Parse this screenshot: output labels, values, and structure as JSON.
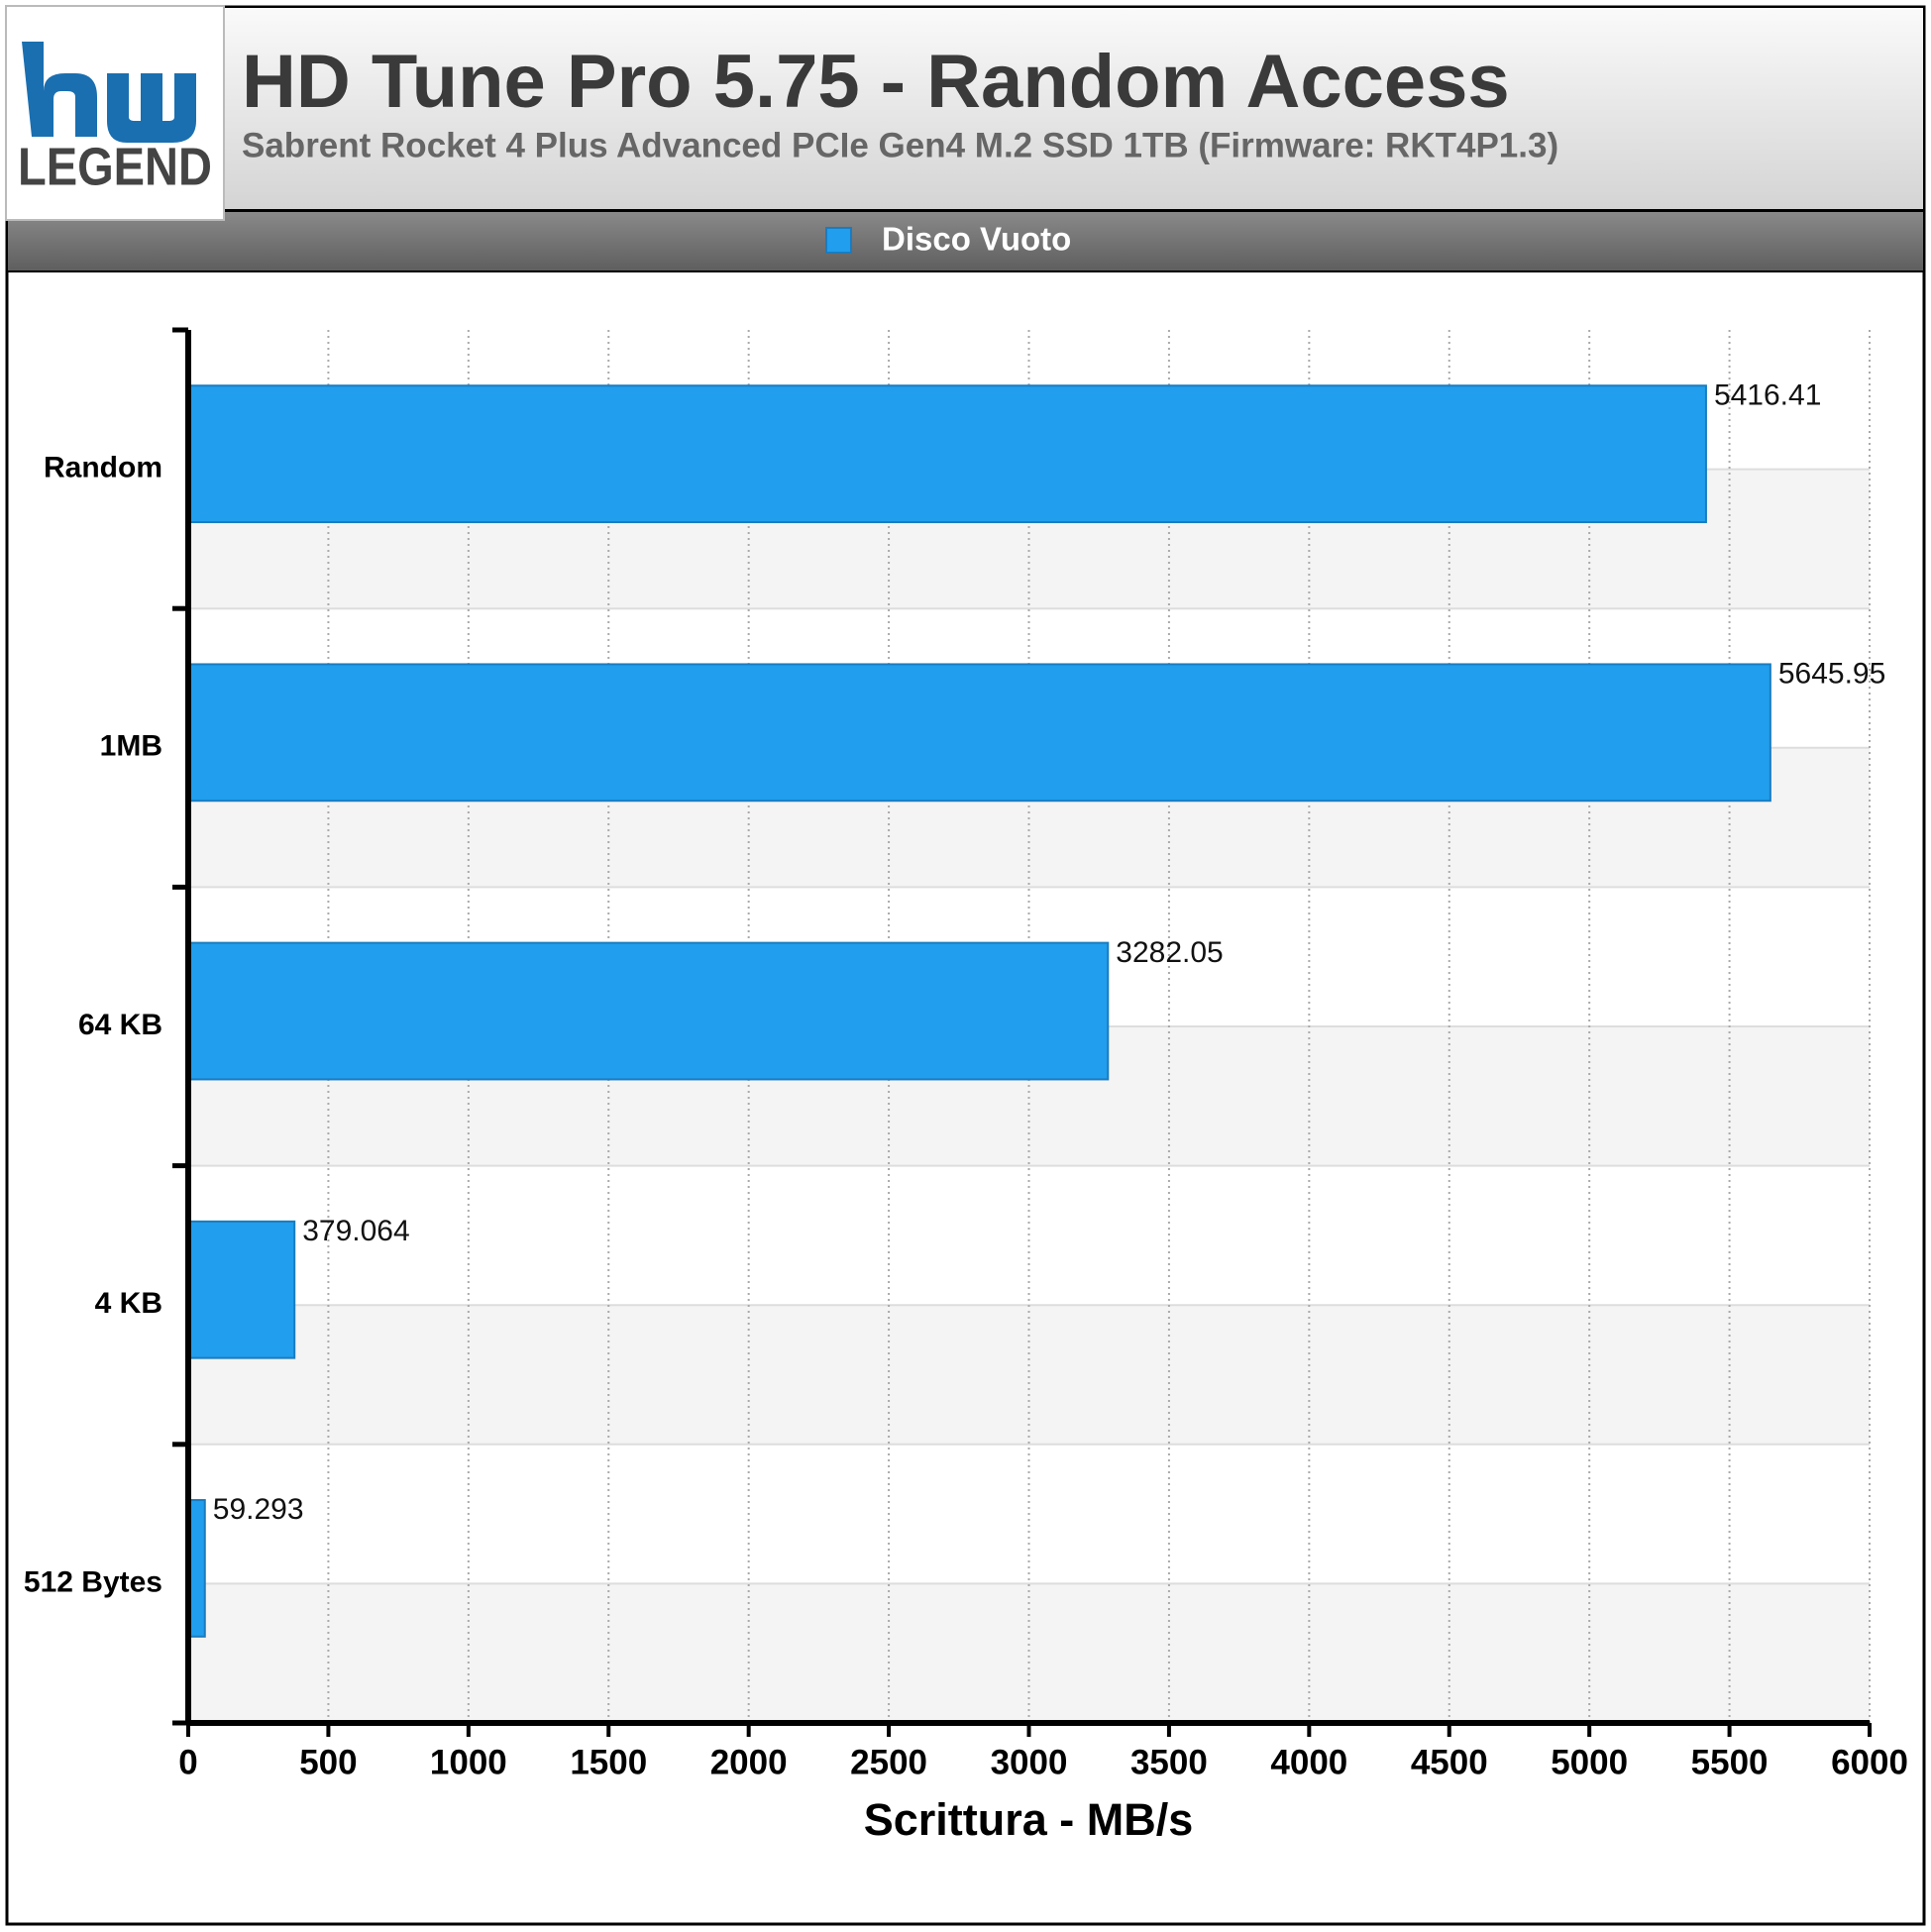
{
  "chart_data": {
    "type": "bar",
    "orientation": "horizontal",
    "title": "HD Tune Pro 5.75 - Random Access",
    "subtitle": "Sabrent Rocket 4 Plus Advanced PCIe Gen4 M.2 SSD 1TB (Firmware: RKT4P1.3)",
    "logo_text": "LEGEND",
    "categories": [
      "Random",
      "1MB",
      "64 KB",
      "4 KB",
      "512 Bytes"
    ],
    "series": [
      {
        "name": "Disco Vuoto",
        "color": "#219eed",
        "values": [
          5416.41,
          5645.95,
          3282.05,
          379.064,
          59.293
        ]
      }
    ],
    "xlabel": "Scrittura - MB/s",
    "xlim": [
      0,
      6000
    ],
    "xticks": [
      0,
      500,
      1000,
      1500,
      2000,
      2500,
      3000,
      3500,
      4000,
      4500,
      5000,
      5500,
      6000
    ],
    "grid": true
  }
}
